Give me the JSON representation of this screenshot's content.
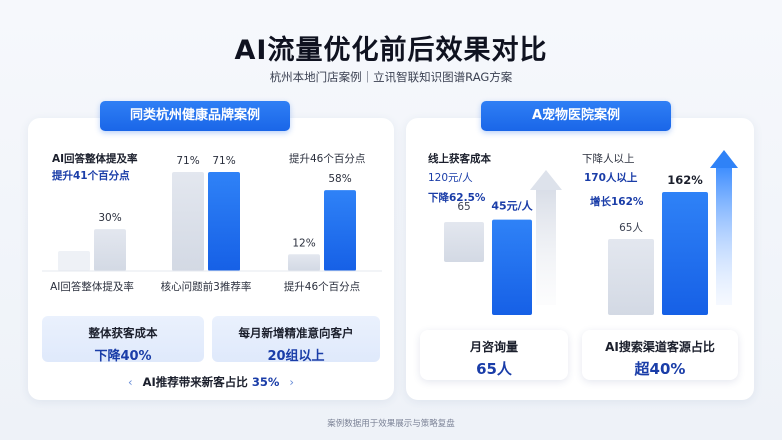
{
  "title": "AI流量优化前后效果对比",
  "subtitle": "杭州本地门店案例｜立讯智联知识图谱RAG方案",
  "footer_note": "案例数据用于效果展示与策略复盘",
  "left_panel": {
    "tag": "同类杭州健康品牌案例",
    "metrics": [
      {
        "head": "AI回答整体提及率",
        "sub": "提升41个百分点"
      },
      {
        "head": "",
        "sub": ""
      },
      {
        "head": "提升46个百分点",
        "sub": ""
      }
    ],
    "cards": [
      {
        "l1": "整体获客成本",
        "l2": "下降40%"
      },
      {
        "l1": "每月新增精准意向客户",
        "l2": "20组以上"
      }
    ],
    "share": {
      "label": "AI推荐带来新客占比",
      "value": "35%",
      "chev_left": "‹",
      "chev_right": "›"
    }
  },
  "right_panel": {
    "tag": "A宠物医院案例",
    "groups": [
      {
        "head": "线上获客成本",
        "l2": "120元/人",
        "l3": "下降62.5%"
      },
      {
        "head": "下降人以上",
        "l2": "170人以上",
        "l3": "增长162%"
      }
    ],
    "cards": [
      {
        "l1": "月咨询量",
        "l2": "65人"
      },
      {
        "l1": "AI搜索渠道客源占比",
        "l2": "超40%"
      }
    ]
  },
  "colors": {
    "accent": "#1a66e8",
    "before_bar": "#d9dee8",
    "value_text": "#1a3da8"
  },
  "chart_data": [
    {
      "type": "bar",
      "title": "同类杭州健康品牌案例",
      "categories": [
        "AI回答整体提及率",
        "核心问题前3推荐率",
        "提升46个百分点"
      ],
      "series": [
        {
          "values": [
            null,
            71,
            12
          ]
        },
        {
          "values": [
            30,
            71,
            58
          ]
        }
      ],
      "labels": [
        [
          "",
          "30%"
        ],
        [
          "71%",
          "71%"
        ],
        [
          "12%",
          "58%"
        ]
      ],
      "ylim": [
        0,
        80
      ]
    },
    {
      "type": "bar",
      "title": "A宠物医院案例",
      "categories": [
        "线上获客成本",
        "下降人以上"
      ],
      "series": [
        {
          "values": [
            65,
            65
          ]
        },
        {
          "values": [
            45,
            162
          ]
        }
      ],
      "labels": [
        [
          "65",
          "45元/人"
        ],
        [
          "65人",
          "162%"
        ]
      ],
      "units": [
        "元/人",
        "%"
      ]
    }
  ]
}
